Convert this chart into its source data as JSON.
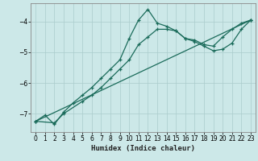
{
  "xlabel": "Humidex (Indice chaleur)",
  "ylabel": "",
  "background_color": "#cce8e8",
  "grid_color": "#aacccc",
  "line_color": "#1a6b5a",
  "xlim": [
    -0.5,
    23.5
  ],
  "ylim": [
    -7.6,
    -3.4
  ],
  "yticks": [
    -7,
    -6,
    -5,
    -4
  ],
  "xticks": [
    0,
    1,
    2,
    3,
    4,
    5,
    6,
    7,
    8,
    9,
    10,
    11,
    12,
    13,
    14,
    15,
    16,
    17,
    18,
    19,
    20,
    21,
    22,
    23
  ],
  "curve1_x": [
    0,
    1,
    2,
    3,
    4,
    5,
    6,
    7,
    8,
    9,
    10,
    11,
    12,
    13,
    14,
    15,
    16,
    17,
    18,
    19,
    20,
    21,
    22,
    23
  ],
  "curve1_y": [
    -7.25,
    -7.05,
    -7.35,
    -6.95,
    -6.65,
    -6.4,
    -6.15,
    -5.85,
    -5.55,
    -5.25,
    -4.55,
    -3.95,
    -3.6,
    -4.05,
    -4.15,
    -4.3,
    -4.55,
    -4.6,
    -4.75,
    -4.8,
    -4.5,
    -4.25,
    -4.05,
    -3.95
  ],
  "curve2_x": [
    0,
    2,
    3,
    5,
    6,
    7,
    8,
    9,
    10,
    11,
    12,
    13,
    14,
    15,
    16,
    17,
    18,
    19,
    20,
    21,
    22,
    23
  ],
  "curve2_y": [
    -7.25,
    -7.3,
    -7.0,
    -6.6,
    -6.4,
    -6.15,
    -5.85,
    -5.55,
    -5.25,
    -4.75,
    -4.5,
    -4.25,
    -4.25,
    -4.3,
    -4.55,
    -4.65,
    -4.8,
    -4.95,
    -4.9,
    -4.7,
    -4.25,
    -3.95
  ],
  "curve3_x": [
    0,
    23
  ],
  "curve3_y": [
    -7.25,
    -3.95
  ]
}
